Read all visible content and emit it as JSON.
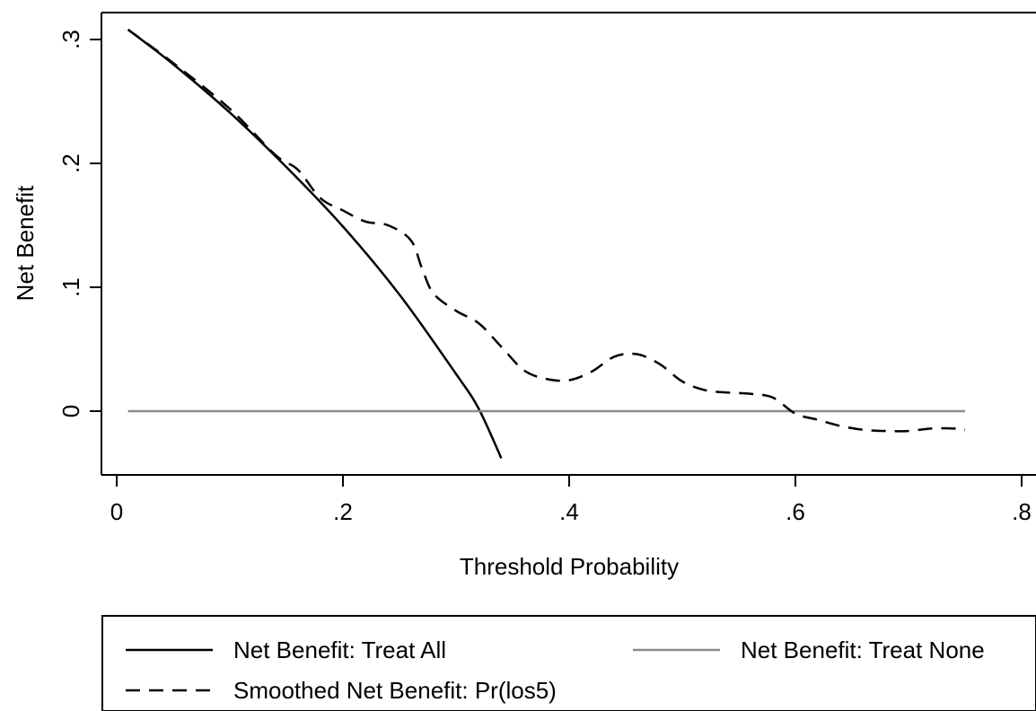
{
  "chart_data": {
    "type": "line",
    "xlabel": "Threshold Probability",
    "ylabel": "Net Benefit",
    "xlim": [
      0,
      0.8
    ],
    "ylim": [
      -0.05,
      0.32
    ],
    "x_ticks": [
      0,
      0.2,
      0.4,
      0.6,
      0.8
    ],
    "x_tick_labels": [
      "0",
      ".2",
      ".4",
      ".6",
      ".8"
    ],
    "y_ticks": [
      0,
      0.1,
      0.2,
      0.3
    ],
    "y_tick_labels": [
      "0",
      ".1",
      ".2",
      ".3"
    ],
    "grid": false,
    "legend_position": "bottom",
    "series": [
      {
        "name": "Net Benefit: Treat All",
        "style": "solid",
        "color": "#000000",
        "x": [
          0.01,
          0.05,
          0.1,
          0.15,
          0.2,
          0.25,
          0.3,
          0.32,
          0.34
        ],
        "y": [
          0.308,
          0.28,
          0.241,
          0.197,
          0.149,
          0.094,
          0.03,
          0.002,
          -0.038
        ]
      },
      {
        "name": "Net Benefit: Treat None",
        "style": "solid",
        "color": "#8c8c8c",
        "x": [
          0.01,
          0.75
        ],
        "y": [
          0,
          0
        ]
      },
      {
        "name": "Smoothed Net Benefit: Pr(los5)",
        "style": "dashed",
        "color": "#000000",
        "x": [
          0.01,
          0.05,
          0.1,
          0.14,
          0.16,
          0.18,
          0.2,
          0.22,
          0.24,
          0.26,
          0.27,
          0.28,
          0.3,
          0.32,
          0.34,
          0.36,
          0.38,
          0.4,
          0.42,
          0.44,
          0.46,
          0.48,
          0.5,
          0.52,
          0.54,
          0.56,
          0.58,
          0.6,
          0.62,
          0.64,
          0.66,
          0.68,
          0.7,
          0.72,
          0.74,
          0.75
        ],
        "y": [
          0.308,
          0.281,
          0.244,
          0.207,
          0.195,
          0.172,
          0.162,
          0.153,
          0.15,
          0.138,
          0.115,
          0.095,
          0.081,
          0.071,
          0.052,
          0.033,
          0.026,
          0.025,
          0.032,
          0.044,
          0.046,
          0.038,
          0.024,
          0.017,
          0.015,
          0.014,
          0.011,
          -0.002,
          -0.007,
          -0.012,
          -0.015,
          -0.016,
          -0.016,
          -0.014,
          -0.014,
          -0.015
        ]
      }
    ]
  }
}
